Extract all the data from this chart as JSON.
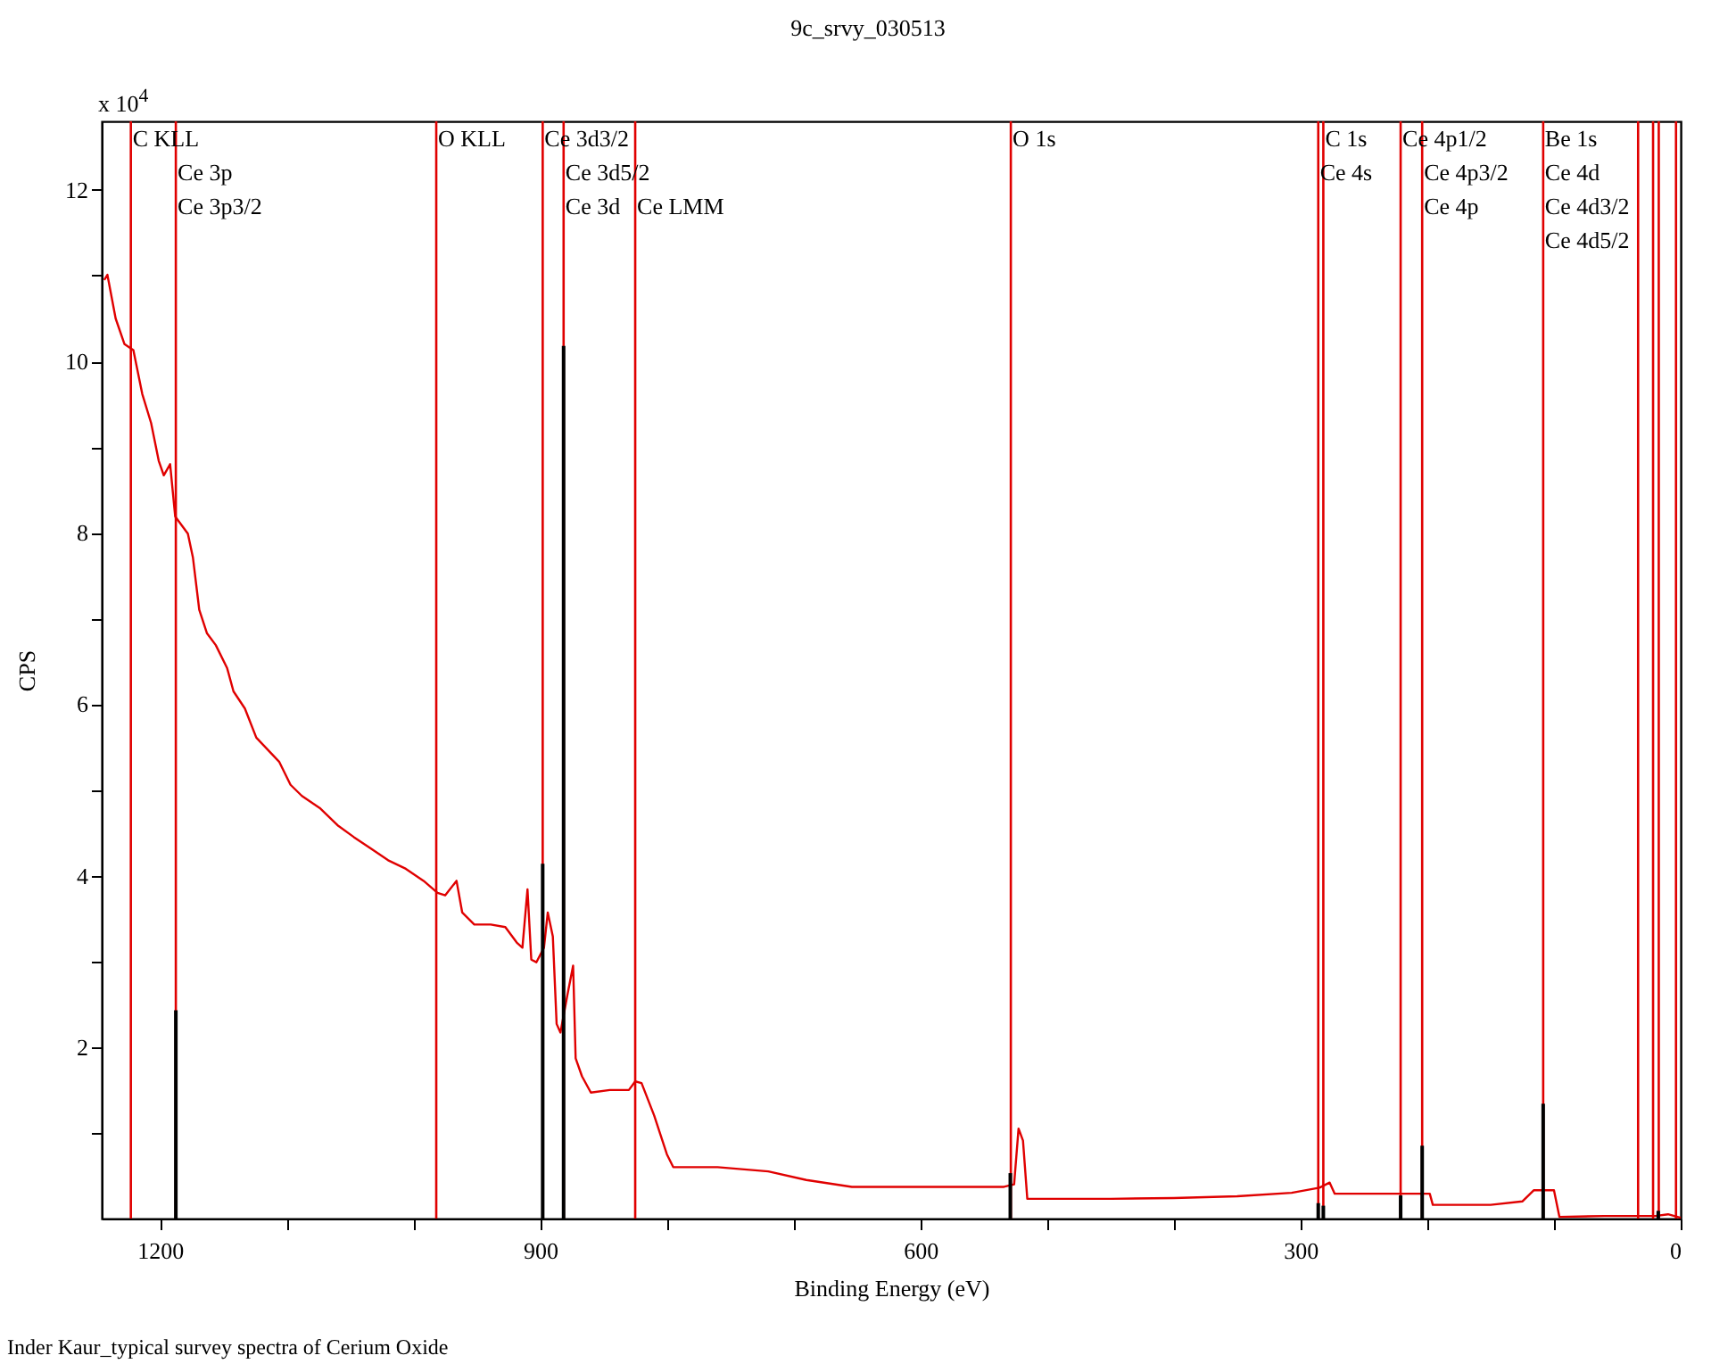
{
  "chart_data": {
    "type": "line",
    "title": "9c_srvy_030513",
    "xlabel": "Binding Energy (eV)",
    "ylabel": "CPS",
    "annotations": [
      "x 10$^{4}$",
      "Inder Kaur_typical survey spectra of Cerium Oxide"
    ],
    "xlim": [
      1246,
      0
    ],
    "ylim": [
      0,
      12.8
    ],
    "xticks": [
      1200,
      {
        "value": 1100,
        "label": null
      },
      {
        "value": 1000,
        "label": null
      },
      900,
      {
        "value": 800,
        "label": null
      },
      {
        "value": 700,
        "label": null
      },
      600,
      {
        "value": 500,
        "label": null
      },
      {
        "value": 400,
        "label": null
      },
      300,
      {
        "value": 200,
        "label": null
      },
      {
        "value": 100,
        "label": null
      },
      0
    ],
    "yticks": [
      {
        "value": 1,
        "label": null
      },
      2,
      {
        "value": 3,
        "label": null
      },
      4,
      {
        "value": 5,
        "label": null
      },
      6,
      {
        "value": 7,
        "label": null
      },
      8,
      {
        "value": 9,
        "label": null
      },
      10,
      {
        "value": 11,
        "label": null
      },
      12
    ],
    "grid": false,
    "series": [
      {
        "color": "#e00000",
        "x": [
          1244,
          1241.5,
          1235,
          1228,
          1221,
          1214,
          1207,
          1201,
          1197,
          1192,
          1188,
          1178,
          1174,
          1169,
          1163,
          1156,
          1147,
          1142,
          1133,
          1124,
          1115,
          1106,
          1097,
          1088,
          1074,
          1060,
          1047,
          1033,
          1020,
          1006,
          992,
          981,
          975,
          966,
          961.5,
          952,
          939,
          927.5,
          918.5,
          914,
          910,
          907,
          903,
          897,
          894,
          890,
          887,
          884,
          881,
          878.5,
          874,
          872,
          867,
          860,
          845,
          830,
          825,
          820,
          810,
          800,
          795,
          760,
          720,
          690,
          654,
          600,
          534,
          526,
          522.5,
          519,
          515.6,
          450,
          400,
          350,
          307,
          285,
          277,
          273,
          240,
          198,
          195.6,
          150,
          125,
          116,
          100,
          95.7,
          60,
          20,
          10,
          0
        ],
        "values": [
          10.95,
          11.01,
          10.5,
          10.2,
          10.13,
          9.62,
          9.28,
          8.84,
          8.67,
          8.8,
          8.19,
          7.99,
          7.71,
          7.1,
          6.83,
          6.69,
          6.42,
          6.15,
          5.95,
          5.61,
          5.47,
          5.33,
          5.06,
          4.93,
          4.79,
          4.59,
          4.45,
          4.31,
          4.18,
          4.08,
          3.94,
          3.8,
          3.77,
          3.94,
          3.57,
          3.43,
          3.43,
          3.4,
          3.22,
          3.16,
          3.84,
          3.02,
          2.99,
          3.16,
          3.57,
          3.29,
          2.27,
          2.17,
          2.41,
          2.61,
          2.95,
          1.87,
          1.66,
          1.47,
          1.5,
          1.5,
          1.6,
          1.58,
          1.2,
          0.75,
          0.6,
          0.6,
          0.55,
          0.45,
          0.37,
          0.37,
          0.37,
          0.4,
          1.05,
          0.91,
          0.23,
          0.23,
          0.24,
          0.26,
          0.3,
          0.36,
          0.42,
          0.29,
          0.29,
          0.29,
          0.16,
          0.16,
          0.2,
          0.33,
          0.33,
          0.02,
          0.03,
          0.03,
          0.05,
          0.01
        ]
      },
      {
        "type": "bar",
        "color": "#000000",
        "x": [
          1187.5,
          898,
          881.5,
          529,
          286,
          282,
          221,
          204,
          108.5,
          17.7
        ],
        "values": [
          2.43,
          4.14,
          10.18,
          0.53,
          0.18,
          0.15,
          0.27,
          0.85,
          1.34,
          0.09
        ]
      }
    ],
    "ref_lines": [
      {
        "axis": "x",
        "value": 1223,
        "label": "C KLL",
        "color": "#e00000"
      },
      {
        "axis": "x",
        "value": 1187.5,
        "label": "Ce 3p\nCe 3p3/2",
        "color": "#e00000"
      },
      {
        "axis": "x",
        "value": 982,
        "label": "O KLL",
        "color": "#e00000"
      },
      {
        "axis": "x",
        "value": 898,
        "label": "Ce 3d3/2",
        "color": "#e00000"
      },
      {
        "axis": "x",
        "value": 881.5,
        "label": "Ce 3d5/2\nCe 3d",
        "color": "#e00000"
      },
      {
        "axis": "x",
        "value": 825,
        "label": "Ce LMM",
        "color": "#e00000"
      },
      {
        "axis": "x",
        "value": 528.6,
        "label": "O 1s",
        "color": "#e00000"
      },
      {
        "axis": "x",
        "value": 282,
        "label": "C 1s",
        "color": "#e00000"
      },
      {
        "axis": "x",
        "value": 286,
        "label": "Ce 4s",
        "color": "#e00000"
      },
      {
        "axis": "x",
        "value": 221,
        "label": "Ce 4p1/2",
        "color": "#e00000"
      },
      {
        "axis": "x",
        "value": 204,
        "label": "Ce 4p3/2\nCe 4p",
        "color": "#e00000"
      },
      {
        "axis": "x",
        "value": 108.5,
        "label": "Be 1s\nCe 4d\nCe 4d3/2\nCe 4d5/2",
        "color": "#e00000"
      },
      {
        "axis": "x",
        "value": 33.6,
        "color": "#e00000"
      },
      {
        "axis": "x",
        "value": 21.8,
        "color": "#e00000"
      },
      {
        "axis": "x",
        "value": 17.3,
        "color": "#e00000"
      },
      {
        "axis": "x",
        "value": 3.7,
        "color": "#e00000"
      }
    ]
  }
}
